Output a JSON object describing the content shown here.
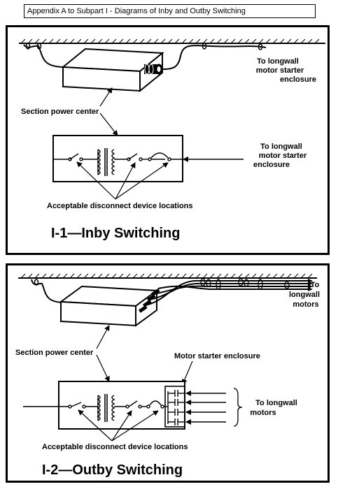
{
  "header": "Appendix A to Subpart I - Diagrams of Inby and Outby Switching",
  "inby": {
    "to_motor_starter_top": [
      "To longwall",
      "motor starter",
      "enclosure"
    ],
    "section_power_center": "Section power center",
    "to_motor_starter_schematic": [
      "To longwall",
      "motor starter",
      "enclosure"
    ],
    "acceptable_locations": "Acceptable disconnect device locations",
    "title": "I-1—Inby Switching"
  },
  "outby": {
    "to_motors_top": [
      "To",
      "longwall",
      "motors"
    ],
    "section_power_center": "Section power center",
    "motor_starter_enclosure": "Motor starter enclosure",
    "to_motors_schematic": [
      "To longwall",
      "motors"
    ],
    "acceptable_locations": "Acceptable disconnect device locations",
    "title": "I-2—Outby Switching"
  }
}
